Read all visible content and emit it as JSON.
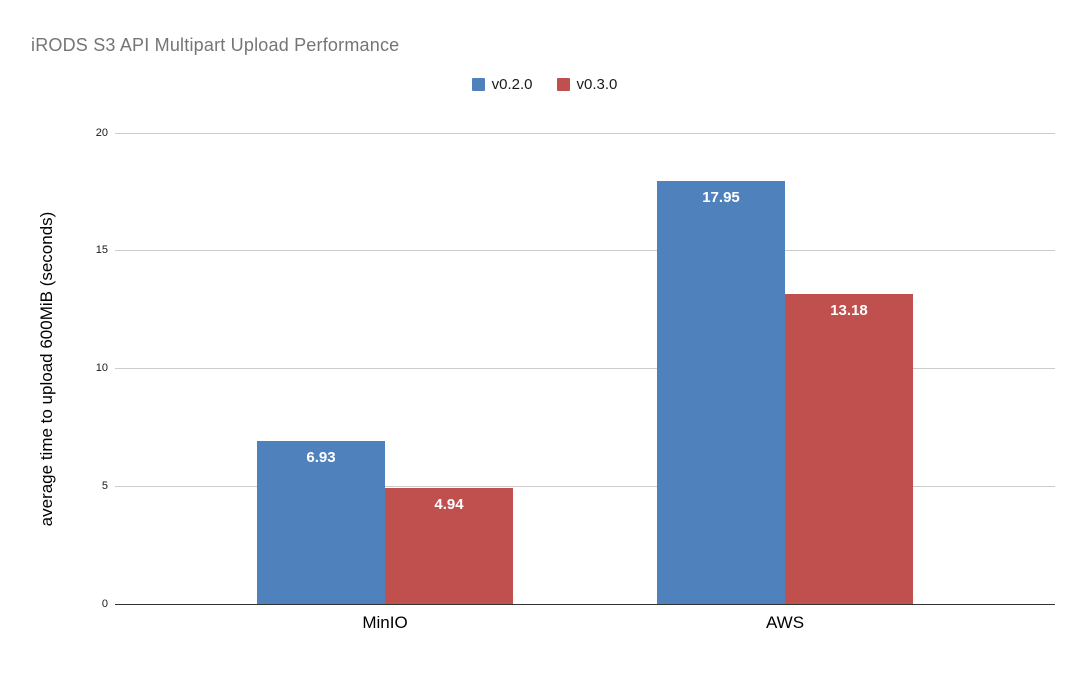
{
  "chart": {
    "title": "iRODS S3 API Multipart Upload Performance"
  },
  "chart_data": {
    "type": "bar",
    "title": "iRODS S3 API Multipart Upload Performance",
    "categories": [
      "MinIO",
      "AWS"
    ],
    "series": [
      {
        "name": "v0.2.0",
        "color": "#4f81bd",
        "values": [
          6.93,
          17.95
        ]
      },
      {
        "name": "v0.3.0",
        "color": "#c0504d",
        "values": [
          4.94,
          13.18
        ]
      }
    ],
    "value_labels": [
      [
        "6.93",
        "17.95"
      ],
      [
        "4.94",
        "13.18"
      ]
    ],
    "xlabel": "",
    "ylabel": "average time to upload 600MiB (seconds)",
    "ylim": [
      0,
      20
    ],
    "yticks": [
      "0",
      "5",
      "10",
      "15",
      "20"
    ],
    "grid": true,
    "legend_position": "top",
    "colors": {
      "title_text": "#757575",
      "axis_line": "#333333",
      "gridline": "#cccccc",
      "value_label_text": "#ffffff",
      "background": "#ffffff"
    }
  }
}
